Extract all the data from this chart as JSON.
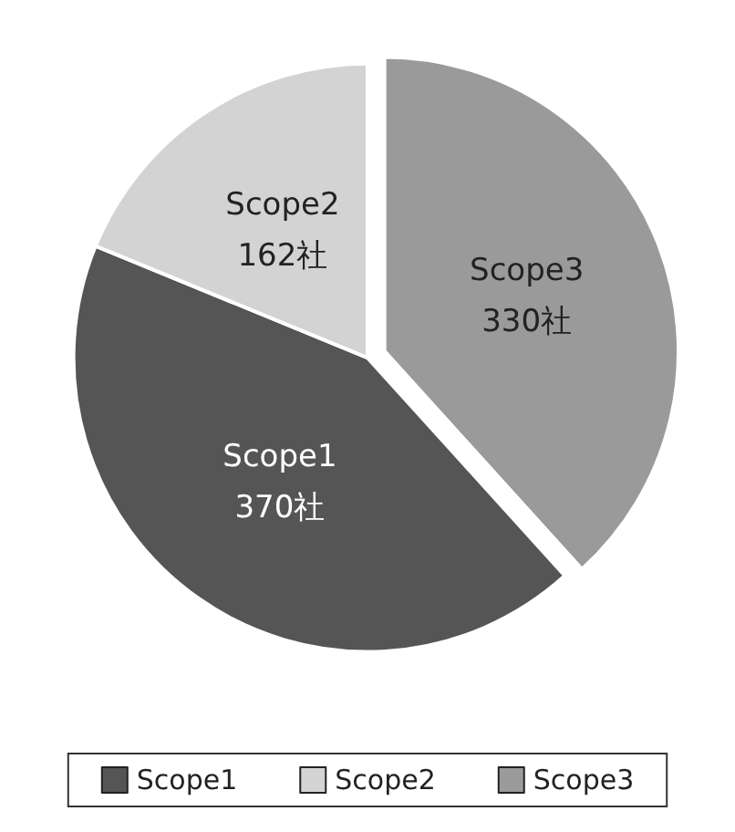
{
  "chart_data": {
    "type": "pie",
    "categories": [
      "Scope1",
      "Scope2",
      "Scope3"
    ],
    "values": [
      370,
      162,
      330
    ],
    "colors": [
      "#555555",
      "#d3d3d3",
      "#9a9a9a"
    ],
    "value_labels": [
      "370社",
      "162社",
      "330社"
    ],
    "legend": "bottom"
  }
}
